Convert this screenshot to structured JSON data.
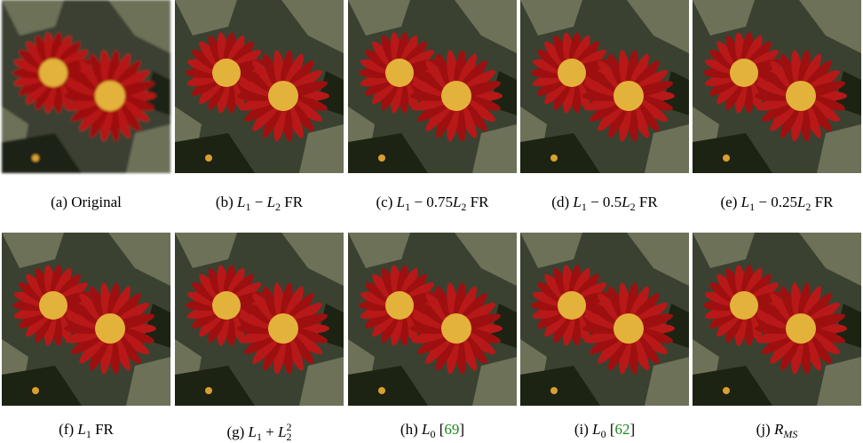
{
  "figure": {
    "panels": [
      {
        "caption": [
          {
            "text": "(a) Original"
          }
        ]
      },
      {
        "caption": [
          {
            "text": "(b) "
          },
          {
            "text": "L",
            "style": "italic"
          },
          {
            "text": "1",
            "style": "sub"
          },
          {
            "text": " − "
          },
          {
            "text": "L",
            "style": "italic"
          },
          {
            "text": "2",
            "style": "sub"
          },
          {
            "text": " FR"
          }
        ]
      },
      {
        "caption": [
          {
            "text": "(c) "
          },
          {
            "text": "L",
            "style": "italic"
          },
          {
            "text": "1",
            "style": "sub"
          },
          {
            "text": " − 0.75"
          },
          {
            "text": "L",
            "style": "italic"
          },
          {
            "text": "2",
            "style": "sub"
          },
          {
            "text": " FR"
          }
        ]
      },
      {
        "caption": [
          {
            "text": "(d) "
          },
          {
            "text": "L",
            "style": "italic"
          },
          {
            "text": "1",
            "style": "sub"
          },
          {
            "text": " − 0.5"
          },
          {
            "text": "L",
            "style": "italic"
          },
          {
            "text": "2",
            "style": "sub"
          },
          {
            "text": " FR"
          }
        ]
      },
      {
        "caption": [
          {
            "text": "(e) "
          },
          {
            "text": "L",
            "style": "italic"
          },
          {
            "text": "1",
            "style": "sub"
          },
          {
            "text": " − 0.25"
          },
          {
            "text": "L",
            "style": "italic"
          },
          {
            "text": "2",
            "style": "sub"
          },
          {
            "text": " FR"
          }
        ]
      },
      {
        "caption": [
          {
            "text": "(f) "
          },
          {
            "text": "L",
            "style": "italic"
          },
          {
            "text": "1",
            "style": "sub"
          },
          {
            "text": " FR"
          }
        ]
      },
      {
        "caption": [
          {
            "text": "(g) "
          },
          {
            "text": "L",
            "style": "italic"
          },
          {
            "text": "1",
            "style": "sub"
          },
          {
            "text": " + "
          },
          {
            "text": "L",
            "style": "italic"
          },
          {
            "text": "2",
            "style": "sub"
          },
          {
            "text": "2",
            "style": "sup"
          }
        ]
      },
      {
        "caption": [
          {
            "text": "(h) "
          },
          {
            "text": "L",
            "style": "italic"
          },
          {
            "text": "0",
            "style": "sub"
          },
          {
            "text": " ["
          },
          {
            "text": "69",
            "style": "cite"
          },
          {
            "text": "]"
          }
        ]
      },
      {
        "caption": [
          {
            "text": "(i) "
          },
          {
            "text": "L",
            "style": "italic"
          },
          {
            "text": "0",
            "style": "sub"
          },
          {
            "text": " ["
          },
          {
            "text": "62",
            "style": "cite"
          },
          {
            "text": "]"
          }
        ]
      },
      {
        "caption": [
          {
            "text": "(j) "
          },
          {
            "text": "R",
            "style": "italic"
          },
          {
            "text": "MS",
            "style": "sub-italic"
          }
        ]
      }
    ]
  }
}
